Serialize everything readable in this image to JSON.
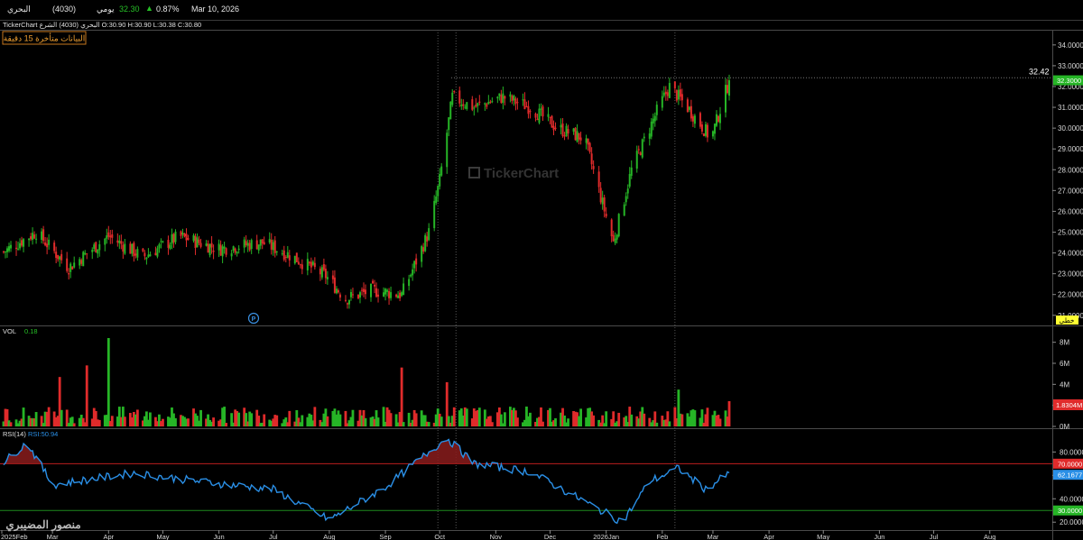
{
  "header": {
    "symbol_name": "البحري",
    "symbol_code": "(4030)",
    "period": "يومي",
    "last_price": "32.30",
    "change_arrow": "▲",
    "change_pct": "0.87%",
    "date": "Mar 10, 2026"
  },
  "info_line": {
    "ohlc": "TickerChart البحري (4030) الشرع  O:30.90  H:30.90  L:30.38  C:30.80",
    "delay_notice": "البيانات متأخرة 15 دقيقة"
  },
  "watermark": "TickerChart",
  "price_panel": {
    "y_ticks": [
      "34.0000",
      "33.0000",
      "32.0000",
      "31.0000",
      "30.0000",
      "29.0000",
      "28.0000",
      "27.0000",
      "26.0000",
      "25.0000",
      "24.0000",
      "23.0000",
      "22.0000",
      "21.0000"
    ],
    "current_label": "32.3000",
    "line_label": "32.42",
    "linear_badge": "خطي",
    "marker_letter": "P"
  },
  "volume_panel": {
    "title": "VOL",
    "value": "0.18",
    "y_ticks": [
      "8M",
      "6M",
      "4M",
      "2M",
      "0M"
    ],
    "current_label": "1.8304M"
  },
  "rsi_panel": {
    "title": "RSI(14)",
    "value_label": "RSI:50.94",
    "y_ticks": [
      "80.0000",
      "60.0000",
      "40.0000",
      "20.0000"
    ],
    "upper_label": "70.0000",
    "current_label": "62.1677",
    "lower_label": "30.0000"
  },
  "x_axis": {
    "labels": [
      "2025Feb",
      "Mar",
      "Apr",
      "May",
      "Jun",
      "Jul",
      "Aug",
      "Sep",
      "Oct",
      "Nov",
      "Dec",
      "2026Jan",
      "Feb",
      "Mar",
      "Apr",
      "May",
      "Jun",
      "Jul",
      "Aug"
    ]
  },
  "author_watermark": "منصور المضيبري",
  "colors": {
    "up": "#26b526",
    "down": "#e02b2b",
    "rsi": "#2a8fe6",
    "badge_yellow": "#ffff33"
  },
  "chart_data": [
    {
      "type": "candlestick",
      "title": "البحري (4030)",
      "ylim": [
        20.6,
        34.6
      ],
      "y_ticks": [
        21,
        22,
        23,
        24,
        25,
        26,
        27,
        28,
        29,
        30,
        31,
        32,
        33,
        34
      ],
      "x_categories": [
        "2025Feb",
        "Mar",
        "Apr",
        "May",
        "Jun",
        "Jul",
        "Aug",
        "Sep",
        "Oct",
        "Nov",
        "Dec",
        "2026Jan",
        "Feb",
        "Mar"
      ],
      "last_close": 32.3,
      "reference_line": 32.42,
      "close_path": [
        {
          "date": "2025-02-01",
          "close": 24.0
        },
        {
          "date": "2025-02-20",
          "close": 25.0
        },
        {
          "date": "2025-03-10",
          "close": 23.3
        },
        {
          "date": "2025-04-01",
          "close": 24.8
        },
        {
          "date": "2025-04-20",
          "close": 23.8
        },
        {
          "date": "2025-05-10",
          "close": 24.8
        },
        {
          "date": "2025-06-01",
          "close": 24.2
        },
        {
          "date": "2025-06-25",
          "close": 24.5
        },
        {
          "date": "2025-07-10",
          "close": 23.9
        },
        {
          "date": "2025-07-30",
          "close": 22.9
        },
        {
          "date": "2025-08-10",
          "close": 21.8
        },
        {
          "date": "2025-08-25",
          "close": 22.2
        },
        {
          "date": "2025-09-10",
          "close": 22.0
        },
        {
          "date": "2025-09-25",
          "close": 25.0
        },
        {
          "date": "2025-10-01",
          "close": 27.5
        },
        {
          "date": "2025-10-08",
          "close": 31.5
        },
        {
          "date": "2025-10-20",
          "close": 31.0
        },
        {
          "date": "2025-11-05",
          "close": 31.5
        },
        {
          "date": "2025-11-20",
          "close": 31.0
        },
        {
          "date": "2025-12-05",
          "close": 30.0
        },
        {
          "date": "2025-12-20",
          "close": 29.5
        },
        {
          "date": "2026-01-05",
          "close": 24.5
        },
        {
          "date": "2026-01-15",
          "close": 28.0
        },
        {
          "date": "2026-01-30",
          "close": 31.0
        },
        {
          "date": "2026-02-05",
          "close": 32.0
        },
        {
          "date": "2026-02-15",
          "close": 31.0
        },
        {
          "date": "2026-02-28",
          "close": 29.5
        },
        {
          "date": "2026-03-10",
          "close": 32.3
        }
      ]
    },
    {
      "type": "bar",
      "title": "VOL",
      "ylim": [
        0,
        9
      ],
      "y_ticks": [
        0,
        2,
        4,
        6,
        8
      ],
      "unit": "M",
      "last_value": 1.8304,
      "notable_values": [
        {
          "date": "2025-03-05",
          "value": 4.7
        },
        {
          "date": "2025-03-20",
          "value": 5.8
        },
        {
          "date": "2025-04-01",
          "value": 8.4
        },
        {
          "date": "2025-09-10",
          "value": 5.6
        },
        {
          "date": "2025-10-05",
          "value": 4.2
        },
        {
          "date": "2026-02-10",
          "value": 3.5
        }
      ]
    },
    {
      "type": "line",
      "title": "RSI(14)",
      "ylim": [
        14,
        98
      ],
      "y_ticks": [
        20,
        40,
        60,
        80
      ],
      "reference_lines": [
        70,
        30
      ],
      "last_value": 62.1677,
      "path": [
        {
          "date": "2025-02-01",
          "value": 70
        },
        {
          "date": "2025-02-15",
          "value": 88
        },
        {
          "date": "2025-03-01",
          "value": 52
        },
        {
          "date": "2025-04-15",
          "value": 62
        },
        {
          "date": "2025-05-20",
          "value": 55
        },
        {
          "date": "2025-07-01",
          "value": 48
        },
        {
          "date": "2025-08-01",
          "value": 22
        },
        {
          "date": "2025-09-01",
          "value": 50
        },
        {
          "date": "2025-09-25",
          "value": 80
        },
        {
          "date": "2025-10-05",
          "value": 92
        },
        {
          "date": "2025-10-20",
          "value": 70
        },
        {
          "date": "2025-11-20",
          "value": 63
        },
        {
          "date": "2026-01-10",
          "value": 20
        },
        {
          "date": "2026-01-25",
          "value": 55
        },
        {
          "date": "2026-02-10",
          "value": 66
        },
        {
          "date": "2026-02-25",
          "value": 48
        },
        {
          "date": "2026-03-10",
          "value": 62
        }
      ]
    }
  ]
}
